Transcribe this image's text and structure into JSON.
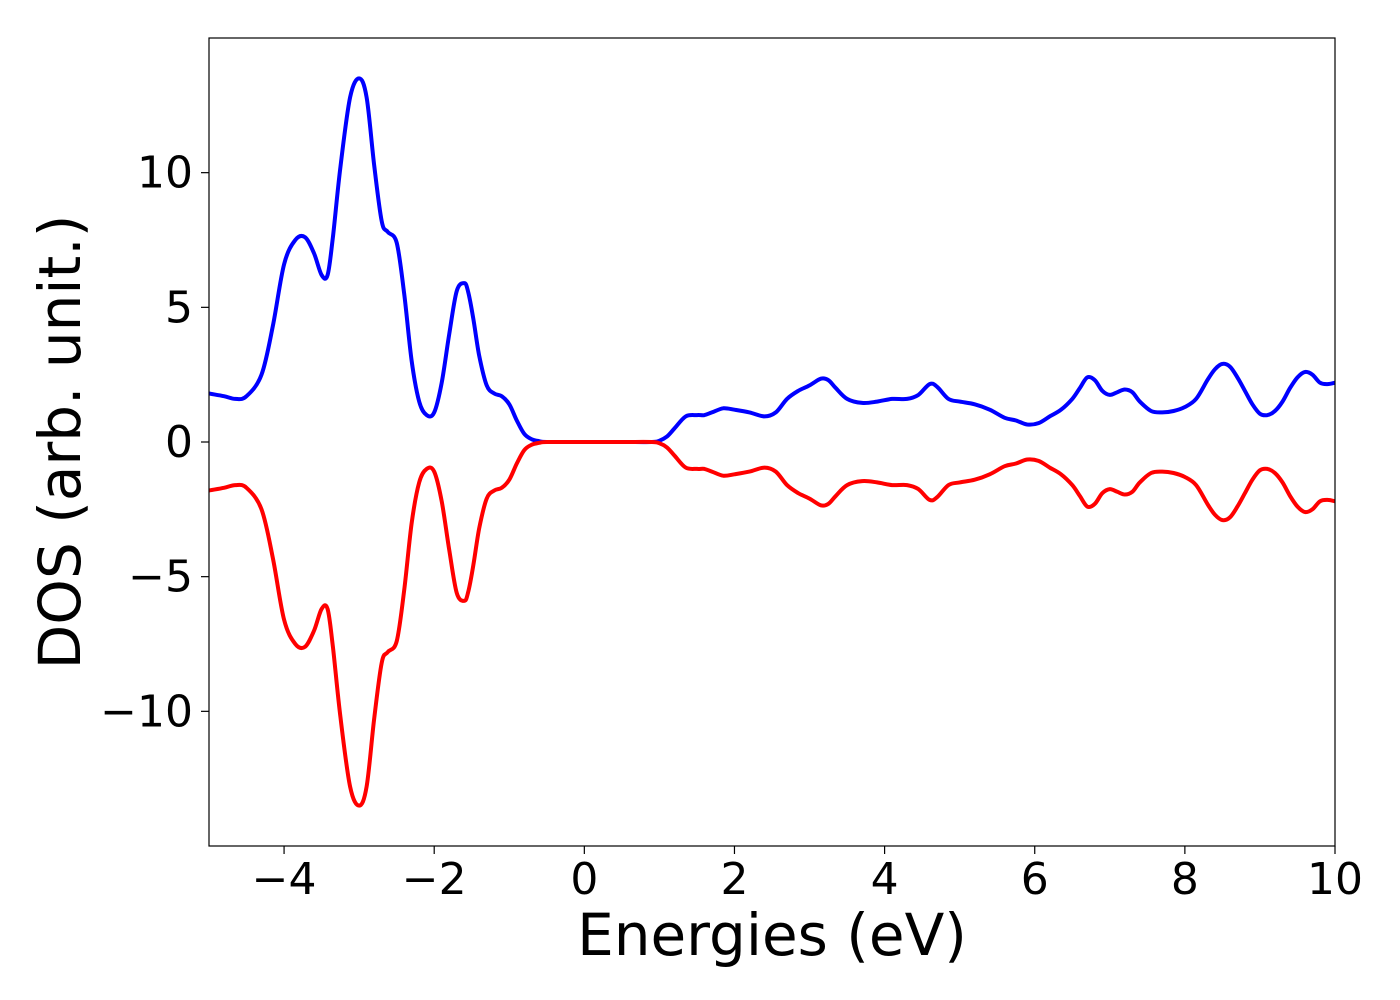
{
  "chart_data": {
    "type": "line",
    "title": "",
    "xlabel": "Energies (eV)",
    "ylabel": "DOS (arb. unit.)",
    "xlim": [
      -5,
      10
    ],
    "ylim": [
      -15,
      15
    ],
    "xticks": [
      -4,
      -2,
      0,
      2,
      4,
      6,
      8,
      10
    ],
    "xtick_labels": [
      "−4",
      "−2",
      "0",
      "2",
      "4",
      "6",
      "8",
      "10"
    ],
    "yticks": [
      -10,
      -5,
      0,
      5,
      10
    ],
    "ytick_labels": [
      "−10",
      "−5",
      "0",
      "5",
      "10"
    ],
    "grid": false,
    "legend": "none",
    "series": [
      {
        "color": "#0000ff",
        "x": [
          -5.0,
          -4.8,
          -4.65,
          -4.5,
          -4.3,
          -4.15,
          -4.0,
          -3.85,
          -3.72,
          -3.6,
          -3.5,
          -3.42,
          -3.35,
          -3.25,
          -3.12,
          -3.0,
          -2.9,
          -2.8,
          -2.7,
          -2.62,
          -2.5,
          -2.4,
          -2.3,
          -2.2,
          -2.1,
          -2.0,
          -1.9,
          -1.8,
          -1.7,
          -1.6,
          -1.55,
          -1.48,
          -1.4,
          -1.3,
          -1.2,
          -1.1,
          -1.0,
          -0.9,
          -0.8,
          -0.7,
          -0.6,
          -0.5,
          0.0,
          0.5,
          0.9,
          1.0,
          1.1,
          1.2,
          1.35,
          1.5,
          1.6,
          1.7,
          1.85,
          2.0,
          2.2,
          2.4,
          2.55,
          2.7,
          2.85,
          3.0,
          3.15,
          3.25,
          3.35,
          3.5,
          3.7,
          3.9,
          4.1,
          4.3,
          4.45,
          4.6,
          4.7,
          4.85,
          5.0,
          5.2,
          5.4,
          5.6,
          5.75,
          5.9,
          6.05,
          6.2,
          6.35,
          6.5,
          6.6,
          6.7,
          6.8,
          6.9,
          7.0,
          7.1,
          7.2,
          7.3,
          7.4,
          7.55,
          7.7,
          7.85,
          8.0,
          8.15,
          8.3,
          8.4,
          8.5,
          8.6,
          8.7,
          8.8,
          8.9,
          9.0,
          9.1,
          9.2,
          9.3,
          9.4,
          9.5,
          9.6,
          9.7,
          9.8,
          9.9,
          10.0
        ],
        "y": [
          1.8,
          1.7,
          1.6,
          1.7,
          2.5,
          4.3,
          6.6,
          7.5,
          7.6,
          7.0,
          6.2,
          6.2,
          7.6,
          10.2,
          12.8,
          13.5,
          12.8,
          10.3,
          8.2,
          7.8,
          7.4,
          5.5,
          3.0,
          1.5,
          1.0,
          1.1,
          2.2,
          4.0,
          5.6,
          5.9,
          5.6,
          4.6,
          3.2,
          2.1,
          1.8,
          1.7,
          1.4,
          0.8,
          0.3,
          0.1,
          0.03,
          0.0,
          0.0,
          0.0,
          0.0,
          0.05,
          0.2,
          0.5,
          0.95,
          1.0,
          1.0,
          1.1,
          1.25,
          1.2,
          1.1,
          0.95,
          1.1,
          1.6,
          1.9,
          2.1,
          2.35,
          2.3,
          2.0,
          1.6,
          1.45,
          1.5,
          1.6,
          1.6,
          1.75,
          2.15,
          2.05,
          1.6,
          1.5,
          1.4,
          1.2,
          0.9,
          0.8,
          0.65,
          0.7,
          0.95,
          1.2,
          1.6,
          2.0,
          2.4,
          2.3,
          1.9,
          1.75,
          1.85,
          1.95,
          1.85,
          1.5,
          1.15,
          1.1,
          1.15,
          1.3,
          1.6,
          2.3,
          2.7,
          2.9,
          2.8,
          2.4,
          1.9,
          1.4,
          1.05,
          1.0,
          1.15,
          1.5,
          2.0,
          2.4,
          2.6,
          2.5,
          2.2,
          2.15,
          2.2
        ]
      },
      {
        "color": "#ff0000",
        "x": [
          -5.0,
          -4.8,
          -4.65,
          -4.5,
          -4.3,
          -4.15,
          -4.0,
          -3.85,
          -3.72,
          -3.6,
          -3.5,
          -3.42,
          -3.35,
          -3.25,
          -3.12,
          -3.0,
          -2.9,
          -2.8,
          -2.7,
          -2.62,
          -2.5,
          -2.4,
          -2.3,
          -2.2,
          -2.1,
          -2.0,
          -1.9,
          -1.8,
          -1.7,
          -1.6,
          -1.55,
          -1.48,
          -1.4,
          -1.3,
          -1.2,
          -1.1,
          -1.0,
          -0.9,
          -0.8,
          -0.7,
          -0.6,
          -0.5,
          0.0,
          0.5,
          0.9,
          1.0,
          1.1,
          1.2,
          1.35,
          1.5,
          1.6,
          1.7,
          1.85,
          2.0,
          2.2,
          2.4,
          2.55,
          2.7,
          2.85,
          3.0,
          3.15,
          3.25,
          3.35,
          3.5,
          3.7,
          3.9,
          4.1,
          4.3,
          4.45,
          4.6,
          4.7,
          4.85,
          5.0,
          5.2,
          5.4,
          5.6,
          5.75,
          5.9,
          6.05,
          6.2,
          6.35,
          6.5,
          6.6,
          6.7,
          6.8,
          6.9,
          7.0,
          7.1,
          7.2,
          7.3,
          7.4,
          7.55,
          7.7,
          7.85,
          8.0,
          8.15,
          8.3,
          8.4,
          8.5,
          8.6,
          8.7,
          8.8,
          8.9,
          9.0,
          9.1,
          9.2,
          9.3,
          9.4,
          9.5,
          9.6,
          9.7,
          9.8,
          9.9,
          10.0
        ],
        "y": [
          -1.8,
          -1.7,
          -1.6,
          -1.7,
          -2.5,
          -4.3,
          -6.6,
          -7.5,
          -7.6,
          -7.0,
          -6.2,
          -6.2,
          -7.6,
          -10.2,
          -12.8,
          -13.5,
          -12.8,
          -10.3,
          -8.2,
          -7.8,
          -7.4,
          -5.5,
          -3.0,
          -1.5,
          -1.0,
          -1.1,
          -2.2,
          -4.0,
          -5.6,
          -5.9,
          -5.6,
          -4.6,
          -3.2,
          -2.1,
          -1.8,
          -1.7,
          -1.4,
          -0.8,
          -0.3,
          -0.1,
          -0.03,
          0.0,
          0.0,
          0.0,
          0.0,
          -0.05,
          -0.2,
          -0.5,
          -0.95,
          -1.0,
          -1.0,
          -1.1,
          -1.25,
          -1.2,
          -1.1,
          -0.95,
          -1.1,
          -1.6,
          -1.9,
          -2.1,
          -2.35,
          -2.3,
          -2.0,
          -1.6,
          -1.45,
          -1.5,
          -1.6,
          -1.6,
          -1.75,
          -2.15,
          -2.05,
          -1.6,
          -1.5,
          -1.4,
          -1.2,
          -0.9,
          -0.8,
          -0.65,
          -0.7,
          -0.95,
          -1.2,
          -1.6,
          -2.0,
          -2.4,
          -2.3,
          -1.9,
          -1.75,
          -1.85,
          -1.95,
          -1.85,
          -1.5,
          -1.15,
          -1.1,
          -1.15,
          -1.3,
          -1.6,
          -2.3,
          -2.7,
          -2.9,
          -2.8,
          -2.4,
          -1.9,
          -1.4,
          -1.05,
          -1.0,
          -1.15,
          -1.5,
          -2.0,
          -2.4,
          -2.6,
          -2.5,
          -2.2,
          -2.15,
          -2.2
        ]
      }
    ]
  }
}
